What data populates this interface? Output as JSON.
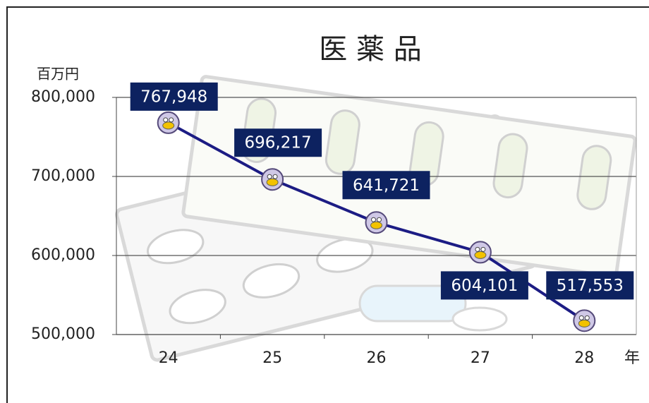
{
  "chart_data": {
    "type": "line",
    "title": "医 薬 品",
    "y_label": "百万円",
    "x_label": "年",
    "categories": [
      "24",
      "25",
      "26",
      "27",
      "28"
    ],
    "series": [
      {
        "name": "医薬品",
        "color": "#1c1c84",
        "values": [
          767948,
          696217,
          641721,
          604101,
          517553
        ],
        "value_labels": [
          "767,948",
          "696,217",
          "641,721",
          "604,101",
          "517,553"
        ]
      }
    ],
    "ylim": [
      500000,
      800000
    ],
    "yticks": [
      {
        "value": 500000,
        "label": "500,000"
      },
      {
        "value": 600000,
        "label": "600,000"
      },
      {
        "value": 700000,
        "label": "700,000"
      },
      {
        "value": 800000,
        "label": "800,000"
      }
    ],
    "grid": true
  }
}
